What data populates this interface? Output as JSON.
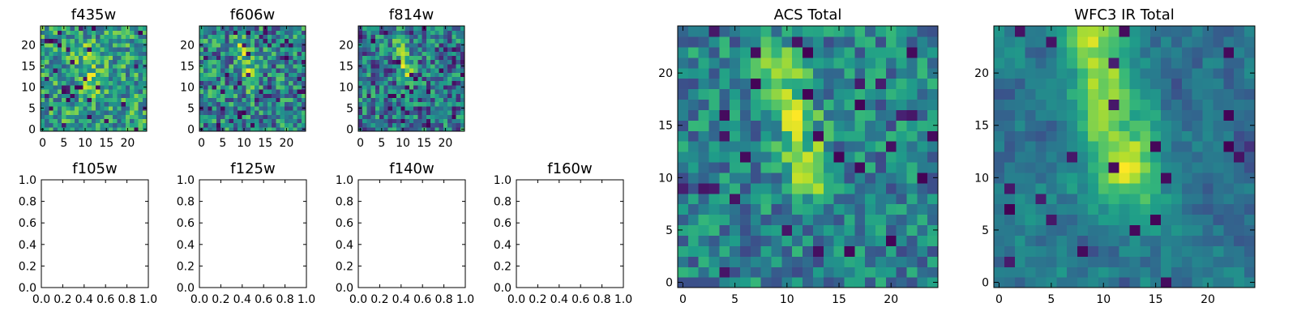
{
  "chart_data": [
    {
      "type": "heatmap",
      "title": "f435w",
      "colormap": "viridis",
      "grid_size": [
        25,
        25
      ],
      "xlim": [
        -0.5,
        24.5
      ],
      "ylim": [
        -0.5,
        24.5
      ],
      "xticks": [
        0,
        5,
        10,
        15,
        20
      ],
      "yticks": [
        0,
        5,
        10,
        15,
        20
      ],
      "description_of_values": "noisy field, values mostly high (green-yellow), faint bright elongated source near x~9-12, y~10-20"
    },
    {
      "type": "heatmap",
      "title": "f606w",
      "colormap": "viridis",
      "grid_size": [
        25,
        25
      ],
      "xlim": [
        -0.5,
        24.5
      ],
      "ylim": [
        -0.5,
        24.5
      ],
      "xticks": [
        0,
        5,
        10,
        15,
        20
      ],
      "yticks": [
        0,
        5,
        10,
        15,
        20
      ]
    },
    {
      "type": "heatmap",
      "title": "f814w",
      "colormap": "viridis",
      "grid_size": [
        25,
        25
      ],
      "xlim": [
        -0.5,
        24.5
      ],
      "ylim": [
        -0.5,
        24.5
      ],
      "xticks": [
        0,
        5,
        10,
        15,
        20
      ],
      "yticks": [
        0,
        5,
        10,
        15,
        20
      ]
    },
    {
      "type": "empty",
      "title": "f105w",
      "xlim": [
        0,
        1
      ],
      "ylim": [
        0,
        1
      ],
      "xticks": [
        "0.0",
        "0.2",
        "0.4",
        "0.6",
        "0.8",
        "1.0"
      ],
      "yticks": [
        "0.0",
        "0.2",
        "0.4",
        "0.6",
        "0.8",
        "1.0"
      ]
    },
    {
      "type": "empty",
      "title": "f125w",
      "xlim": [
        0,
        1
      ],
      "ylim": [
        0,
        1
      ],
      "xticks": [
        "0.0",
        "0.2",
        "0.4",
        "0.6",
        "0.8",
        "1.0"
      ],
      "yticks": [
        "0.0",
        "0.2",
        "0.4",
        "0.6",
        "0.8",
        "1.0"
      ]
    },
    {
      "type": "empty",
      "title": "f140w",
      "xlim": [
        0,
        1
      ],
      "ylim": [
        0,
        1
      ],
      "xticks": [
        "0.0",
        "0.2",
        "0.4",
        "0.6",
        "0.8",
        "1.0"
      ],
      "yticks": [
        "0.0",
        "0.2",
        "0.4",
        "0.6",
        "0.8",
        "1.0"
      ]
    },
    {
      "type": "empty",
      "title": "f160w",
      "xlim": [
        0,
        1
      ],
      "ylim": [
        0,
        1
      ],
      "xticks": [
        "0.0",
        "0.2",
        "0.4",
        "0.6",
        "0.8",
        "1.0"
      ],
      "yticks": [
        "0.0",
        "0.2",
        "0.4",
        "0.6",
        "0.8",
        "1.0"
      ]
    },
    {
      "type": "heatmap",
      "title": "ACS Total",
      "colormap": "viridis",
      "grid_size": [
        25,
        25
      ],
      "xlim": [
        -0.5,
        24.5
      ],
      "ylim": [
        -0.5,
        24.5
      ],
      "xticks": [
        0,
        5,
        10,
        15,
        20
      ],
      "yticks": [
        0,
        5,
        10,
        15,
        20
      ],
      "description_of_values": "bright elongated source from (9,21) to (12,10)"
    },
    {
      "type": "heatmap",
      "title": "WFC3 IR Total",
      "colormap": "viridis",
      "grid_size": [
        25,
        25
      ],
      "xlim": [
        -0.5,
        24.5
      ],
      "ylim": [
        -0.5,
        24.5
      ],
      "xticks": [
        0,
        5,
        10,
        15,
        20
      ],
      "yticks": [
        0,
        5,
        10,
        15,
        20
      ],
      "description_of_values": "smoother bright elongated source from (9,23) to (12,10)"
    }
  ]
}
